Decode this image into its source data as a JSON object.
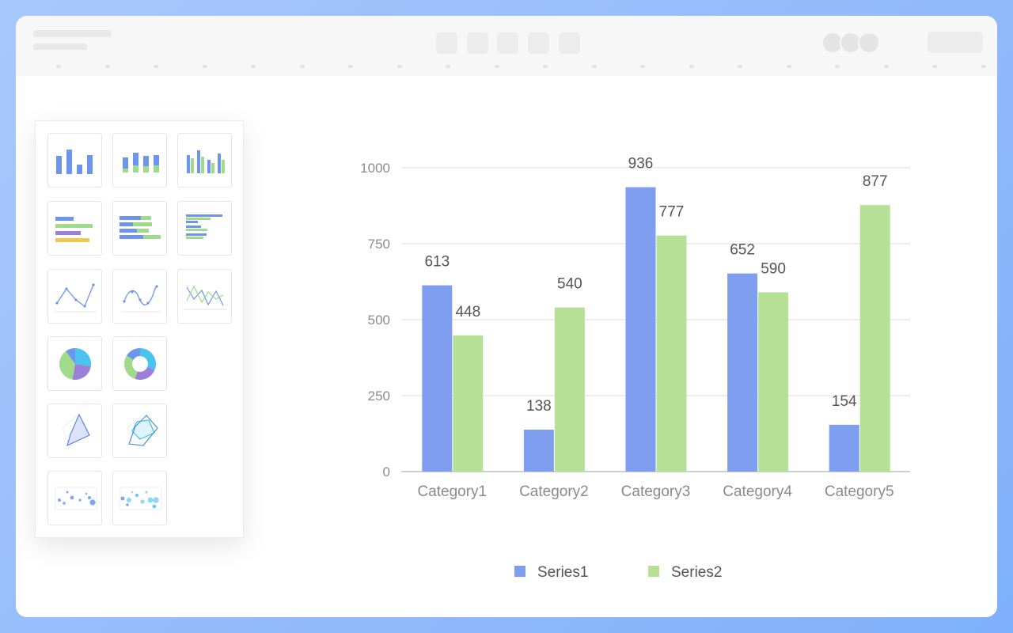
{
  "palette": {
    "chart_types": [
      {
        "icon": "column-chart-icon"
      },
      {
        "icon": "stacked-column-chart-icon"
      },
      {
        "icon": "grouped-column-chart-icon"
      },
      {
        "icon": "bar-chart-icon"
      },
      {
        "icon": "stacked-bar-chart-icon"
      },
      {
        "icon": "grouped-bar-chart-icon"
      },
      {
        "icon": "line-chart-icon"
      },
      {
        "icon": "smooth-line-chart-icon"
      },
      {
        "icon": "multi-line-chart-icon"
      },
      {
        "icon": "pie-chart-icon"
      },
      {
        "icon": "donut-chart-icon"
      },
      {
        "icon": "radar-chart-icon"
      },
      {
        "icon": "multi-radar-chart-icon"
      },
      {
        "icon": "scatter-chart-icon"
      },
      {
        "icon": "bubble-chart-icon"
      }
    ]
  },
  "colors": {
    "series1": "#7f9ef0",
    "series2": "#b5e095",
    "blue": "#6e95ee",
    "green": "#9edb8a",
    "purple": "#9b7fd8",
    "yellow": "#f5c64d",
    "cyan": "#4bc3ef",
    "grid": "#dddddd",
    "axis": "#bfbfbf",
    "tick_text": "#8a8a8a",
    "label_text": "#555555"
  },
  "chart_data": {
    "type": "bar",
    "categories": [
      "Category1",
      "Category2",
      "Category3",
      "Category4",
      "Category5"
    ],
    "series": [
      {
        "name": "Series1",
        "values": [
          613,
          138,
          936,
          652,
          154
        ]
      },
      {
        "name": "Series2",
        "values": [
          448,
          540,
          777,
          590,
          877
        ]
      }
    ],
    "yticks": [
      0,
      250,
      500,
      750,
      1000
    ],
    "ylim": [
      0,
      1000
    ],
    "grid": true,
    "legend_position": "bottom",
    "data_labels": true
  }
}
